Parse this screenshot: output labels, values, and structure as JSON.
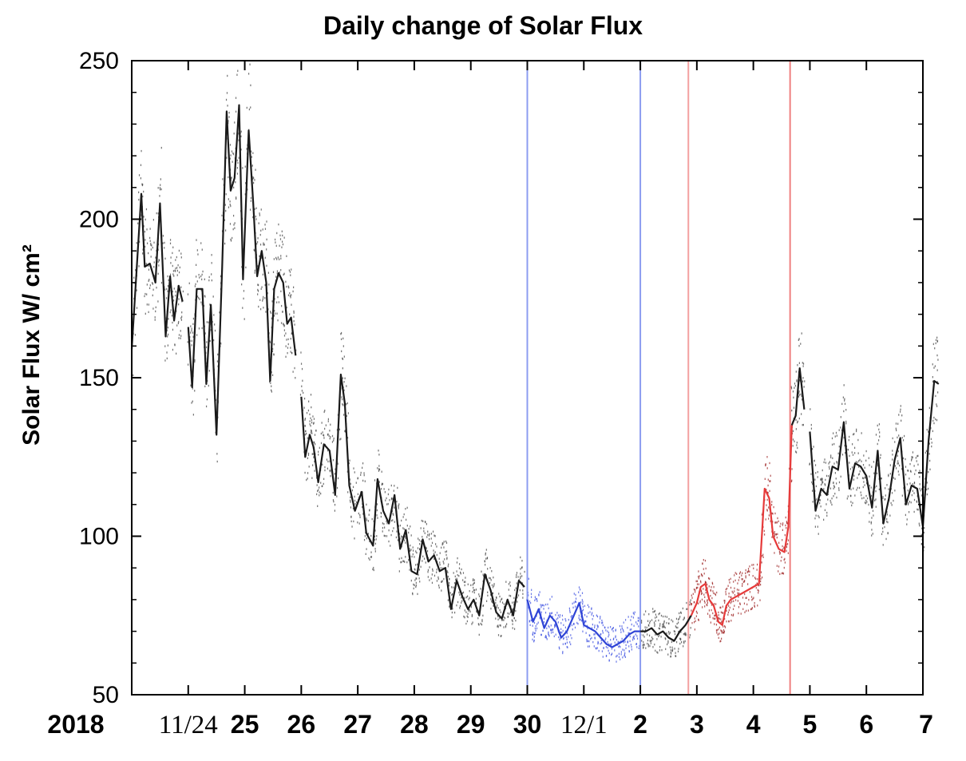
{
  "chart_data": {
    "type": "line",
    "title": "Daily change of Solar Flux",
    "ylabel": "Solar Flux W/ cm²",
    "xlabel": "",
    "ylim": [
      50,
      250
    ],
    "xlim": [
      0,
      14
    ],
    "yticks": [
      50,
      100,
      150,
      200,
      250
    ],
    "xticks": [
      {
        "label": "2018",
        "x": null,
        "style": "bold"
      },
      {
        "label": "11/24",
        "x": 1,
        "style": "serif"
      },
      {
        "label": "25",
        "x": 2,
        "style": "bold"
      },
      {
        "label": "26",
        "x": 3,
        "style": "bold"
      },
      {
        "label": "27",
        "x": 4,
        "style": "bold"
      },
      {
        "label": "28",
        "x": 5,
        "style": "bold"
      },
      {
        "label": "29",
        "x": 6,
        "style": "bold"
      },
      {
        "label": "30",
        "x": 7,
        "style": "bold"
      },
      {
        "label": "12/1",
        "x": 8,
        "style": "serif"
      },
      {
        "label": "2",
        "x": 9,
        "style": "bold"
      },
      {
        "label": "3",
        "x": 10,
        "style": "bold"
      },
      {
        "label": "4",
        "x": 11,
        "style": "bold"
      },
      {
        "label": "5",
        "x": 12,
        "style": "bold"
      },
      {
        "label": "6",
        "x": 13,
        "style": "bold"
      },
      {
        "label": "7",
        "x": 14,
        "style": "bold"
      }
    ],
    "vlines": [
      {
        "x": 7.0,
        "color": "#8c9cf0"
      },
      {
        "x": 9.0,
        "color": "#8c9cf0"
      },
      {
        "x": 9.85,
        "color": "#f4a0a0"
      },
      {
        "x": 11.65,
        "color": "#ef8080"
      }
    ],
    "grid": false,
    "legend": "none",
    "colors": {
      "black": "#1a1a1a",
      "blue": "#2f44d6",
      "red": "#e63a3a"
    },
    "series": [
      {
        "color": "black",
        "points": [
          [
            0.0,
            159
          ],
          [
            0.17,
            208
          ],
          [
            0.23,
            185
          ],
          [
            0.32,
            186
          ],
          [
            0.42,
            180
          ],
          [
            0.5,
            205
          ],
          [
            0.6,
            163
          ],
          [
            0.68,
            182
          ],
          [
            0.75,
            168
          ],
          [
            0.83,
            179
          ],
          [
            0.9,
            174
          ]
        ]
      },
      {
        "color": "black",
        "points": [
          [
            1.0,
            166
          ],
          [
            1.07,
            147
          ],
          [
            1.15,
            178
          ],
          [
            1.25,
            178
          ],
          [
            1.32,
            148
          ],
          [
            1.4,
            173
          ],
          [
            1.5,
            132
          ],
          [
            1.6,
            185
          ],
          [
            1.68,
            234
          ],
          [
            1.75,
            209
          ],
          [
            1.82,
            213
          ],
          [
            1.9,
            236
          ],
          [
            1.97,
            181
          ],
          [
            2.07,
            228
          ],
          [
            2.15,
            205
          ],
          [
            2.22,
            182
          ],
          [
            2.3,
            190
          ],
          [
            2.38,
            180
          ],
          [
            2.45,
            149
          ],
          [
            2.52,
            178
          ],
          [
            2.6,
            183
          ],
          [
            2.68,
            180
          ],
          [
            2.75,
            167
          ],
          [
            2.82,
            169
          ],
          [
            2.9,
            157
          ]
        ]
      },
      {
        "color": "black",
        "points": [
          [
            3.0,
            144
          ],
          [
            3.07,
            125
          ],
          [
            3.15,
            132
          ],
          [
            3.22,
            128
          ],
          [
            3.3,
            117
          ],
          [
            3.4,
            129
          ],
          [
            3.5,
            127
          ],
          [
            3.6,
            113
          ],
          [
            3.7,
            151
          ],
          [
            3.77,
            142
          ],
          [
            3.85,
            116
          ],
          [
            3.95,
            108
          ],
          [
            4.07,
            114
          ],
          [
            4.15,
            101
          ],
          [
            4.27,
            97
          ],
          [
            4.35,
            118
          ],
          [
            4.45,
            108
          ],
          [
            4.55,
            104
          ],
          [
            4.65,
            113
          ],
          [
            4.75,
            96
          ],
          [
            4.85,
            102
          ],
          [
            4.95,
            89
          ],
          [
            5.05,
            88
          ],
          [
            5.15,
            99
          ],
          [
            5.25,
            92
          ],
          [
            5.35,
            94
          ],
          [
            5.45,
            89
          ],
          [
            5.55,
            90
          ],
          [
            5.65,
            77
          ],
          [
            5.75,
            86
          ],
          [
            5.85,
            81
          ],
          [
            5.95,
            77
          ],
          [
            6.05,
            80
          ],
          [
            6.15,
            75
          ],
          [
            6.25,
            88
          ],
          [
            6.35,
            83
          ],
          [
            6.45,
            76
          ],
          [
            6.55,
            74
          ],
          [
            6.65,
            80
          ],
          [
            6.75,
            75
          ],
          [
            6.85,
            86
          ],
          [
            6.95,
            84
          ]
        ]
      },
      {
        "color": "blue",
        "points": [
          [
            7.0,
            80
          ],
          [
            7.1,
            73
          ],
          [
            7.2,
            77
          ],
          [
            7.3,
            71
          ],
          [
            7.4,
            75
          ],
          [
            7.5,
            73
          ],
          [
            7.6,
            68
          ],
          [
            7.7,
            70
          ],
          [
            7.8,
            74
          ],
          [
            7.92,
            79
          ],
          [
            8.0,
            72
          ],
          [
            8.1,
            71
          ],
          [
            8.2,
            70
          ],
          [
            8.3,
            68
          ],
          [
            8.4,
            66
          ],
          [
            8.5,
            65
          ],
          [
            8.6,
            66
          ],
          [
            8.7,
            67
          ],
          [
            8.8,
            69
          ],
          [
            8.9,
            70
          ],
          [
            9.0,
            70
          ]
        ]
      },
      {
        "color": "black",
        "points": [
          [
            9.0,
            70
          ],
          [
            9.1,
            70
          ],
          [
            9.2,
            71
          ],
          [
            9.3,
            69
          ],
          [
            9.4,
            70
          ],
          [
            9.5,
            68
          ],
          [
            9.6,
            67
          ],
          [
            9.7,
            70
          ],
          [
            9.8,
            72
          ],
          [
            9.9,
            75
          ]
        ]
      },
      {
        "color": "red",
        "points": [
          [
            9.9,
            75
          ],
          [
            10.0,
            79
          ],
          [
            10.07,
            84
          ],
          [
            10.15,
            85
          ],
          [
            10.22,
            80
          ],
          [
            10.3,
            78
          ],
          [
            10.38,
            73
          ],
          [
            10.45,
            72
          ],
          [
            10.52,
            78
          ],
          [
            10.6,
            80
          ],
          [
            10.7,
            81
          ],
          [
            10.8,
            82
          ],
          [
            10.9,
            83
          ],
          [
            11.0,
            84
          ],
          [
            11.1,
            85
          ],
          [
            11.2,
            115
          ],
          [
            11.28,
            112
          ],
          [
            11.35,
            100
          ],
          [
            11.45,
            96
          ],
          [
            11.55,
            95
          ],
          [
            11.62,
            103
          ],
          [
            11.68,
            135
          ]
        ]
      },
      {
        "color": "black",
        "points": [
          [
            11.68,
            135
          ],
          [
            11.75,
            138
          ],
          [
            11.82,
            153
          ],
          [
            11.9,
            140
          ]
        ]
      },
      {
        "color": "black",
        "points": [
          [
            12.0,
            133
          ],
          [
            12.1,
            108
          ],
          [
            12.2,
            115
          ],
          [
            12.3,
            113
          ],
          [
            12.4,
            122
          ],
          [
            12.5,
            121
          ],
          [
            12.6,
            136
          ],
          [
            12.7,
            115
          ],
          [
            12.8,
            123
          ],
          [
            12.9,
            122
          ],
          [
            13.0,
            119
          ],
          [
            13.1,
            109
          ],
          [
            13.2,
            127
          ],
          [
            13.3,
            104
          ],
          [
            13.4,
            112
          ],
          [
            13.5,
            124
          ],
          [
            13.6,
            131
          ],
          [
            13.7,
            110
          ],
          [
            13.8,
            116
          ],
          [
            13.9,
            115
          ],
          [
            14.0,
            103
          ],
          [
            14.1,
            130
          ],
          [
            14.2,
            149
          ],
          [
            14.28,
            148
          ]
        ]
      }
    ]
  }
}
